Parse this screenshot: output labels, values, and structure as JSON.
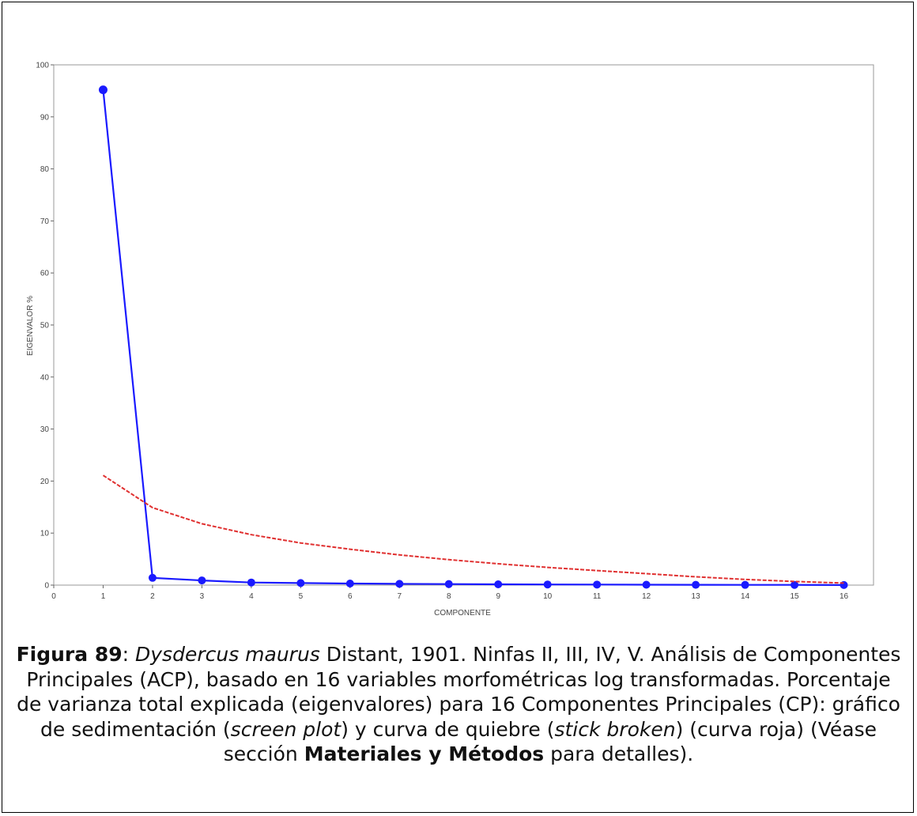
{
  "chart_data": {
    "type": "line",
    "xlabel": "COMPONENTE",
    "ylabel": "EIGENVALOR %",
    "xlim": [
      0,
      16.6
    ],
    "ylim": [
      0,
      100
    ],
    "x_ticks": [
      0,
      1,
      2,
      3,
      4,
      5,
      6,
      7,
      8,
      9,
      10,
      11,
      12,
      13,
      14,
      15,
      16
    ],
    "y_ticks": [
      0,
      10,
      20,
      30,
      40,
      50,
      60,
      70,
      80,
      90,
      100
    ],
    "grid": false,
    "series": [
      {
        "style": "solid-with-markers",
        "color": "#1a1aff",
        "x": [
          1,
          2,
          3,
          4,
          5,
          6,
          7,
          8,
          9,
          10,
          11,
          12,
          13,
          14,
          15,
          16
        ],
        "y": [
          95.2,
          1.4,
          0.9,
          0.5,
          0.4,
          0.3,
          0.25,
          0.2,
          0.15,
          0.12,
          0.1,
          0.08,
          0.06,
          0.05,
          0.04,
          0.02
        ]
      },
      {
        "style": "dashed",
        "color": "#e03030",
        "x": [
          1,
          2,
          3,
          4,
          5,
          6,
          7,
          8,
          9,
          10,
          11,
          12,
          13,
          14,
          15,
          16
        ],
        "y": [
          21.1,
          14.9,
          11.8,
          9.7,
          8.1,
          6.9,
          5.8,
          4.9,
          4.1,
          3.4,
          2.8,
          2.2,
          1.6,
          1.1,
          0.7,
          0.4
        ]
      }
    ]
  },
  "caption": {
    "fig_label": "Figura 89",
    "sep": ": ",
    "species": "Dysdercus maurus",
    "text1": " Distant, 1901. Ninfas II, III, IV, V. Análisis de Componentes Principales (ACP), basado en 16 variables morfométricas log transformadas. Porcentaje de varianza total explicada (eigenvalores) para 16 Componentes Principales (CP): gráfico de sedimentación (",
    "term1": "screen plot",
    "text2": ") y curva de quiebre (",
    "term2": "stick broken",
    "text3": ") (curva roja) (Véase sección ",
    "section": "Materiales y Métodos",
    "text4": " para detalles)."
  }
}
